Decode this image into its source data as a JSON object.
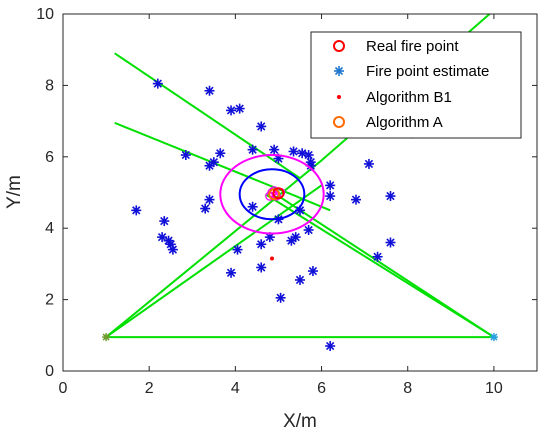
{
  "chart_data": {
    "type": "scatter",
    "xlabel": "X/m",
    "ylabel": "Y/m",
    "xlim": [
      0,
      11
    ],
    "ylim": [
      0,
      10
    ],
    "xticks": [
      "0",
      "2",
      "4",
      "6",
      "8",
      "10"
    ],
    "yticks": [
      "0",
      "2",
      "4",
      "6",
      "8",
      "10"
    ],
    "grid": false,
    "legend_position": "top-right",
    "legend": [
      "Real fire point",
      "Fire point estimate",
      "Algorithm B1",
      "Algorithm A"
    ],
    "series": [
      {
        "name": "Fire point estimate",
        "marker": "asterisk",
        "color": "#1010d8",
        "points": [
          [
            2.2,
            8.05
          ],
          [
            3.4,
            7.85
          ],
          [
            3.9,
            7.3
          ],
          [
            4.1,
            7.35
          ],
          [
            4.6,
            6.85
          ],
          [
            2.85,
            6.05
          ],
          [
            3.65,
            6.1
          ],
          [
            3.4,
            5.75
          ],
          [
            3.5,
            5.85
          ],
          [
            4.4,
            6.2
          ],
          [
            4.9,
            6.2
          ],
          [
            5.0,
            5.95
          ],
          [
            5.35,
            6.15
          ],
          [
            5.55,
            6.1
          ],
          [
            5.7,
            6.05
          ],
          [
            5.75,
            5.85
          ],
          [
            5.75,
            5.75
          ],
          [
            7.1,
            5.8
          ],
          [
            8.1,
            6.65
          ],
          [
            6.2,
            5.2
          ],
          [
            6.2,
            4.9
          ],
          [
            6.8,
            4.8
          ],
          [
            7.6,
            4.9
          ],
          [
            1.7,
            4.5
          ],
          [
            2.35,
            4.2
          ],
          [
            3.3,
            4.55
          ],
          [
            3.4,
            4.8
          ],
          [
            4.4,
            4.6
          ],
          [
            5.0,
            4.25
          ],
          [
            5.5,
            4.5
          ],
          [
            2.3,
            3.75
          ],
          [
            2.45,
            3.65
          ],
          [
            2.5,
            3.55
          ],
          [
            2.55,
            3.4
          ],
          [
            4.05,
            3.4
          ],
          [
            4.6,
            3.55
          ],
          [
            4.8,
            3.75
          ],
          [
            5.3,
            3.65
          ],
          [
            5.4,
            3.75
          ],
          [
            5.7,
            3.95
          ],
          [
            7.6,
            3.6
          ],
          [
            7.3,
            3.2
          ],
          [
            3.9,
            2.75
          ],
          [
            4.6,
            2.9
          ],
          [
            5.5,
            2.55
          ],
          [
            5.8,
            2.8
          ],
          [
            5.05,
            2.05
          ],
          [
            6.2,
            0.7
          ]
        ]
      },
      {
        "name": "Real fire point",
        "marker": "circle",
        "color": "#ff0000",
        "points": [
          [
            5.0,
            4.98
          ]
        ]
      },
      {
        "name": "Algorithm B1",
        "marker": "dot",
        "color": "#ff0000",
        "points": [
          [
            4.85,
            3.15
          ]
        ]
      },
      {
        "name": "Algorithm A",
        "marker": "circle",
        "color": "#ff6a00",
        "points": [
          [
            4.9,
            4.95
          ]
        ]
      },
      {
        "name": "",
        "marker": "circle-small",
        "color": "#ff00ff",
        "points": [
          [
            4.85,
            5.0
          ],
          [
            4.8,
            4.9
          ],
          [
            4.95,
            4.9
          ],
          [
            5.05,
            5.0
          ],
          [
            4.9,
            5.05
          ]
        ]
      }
    ],
    "lines": [
      {
        "color": "#00e000",
        "points": [
          [
            1.2,
            8.9
          ],
          [
            5.5,
            5.4
          ]
        ]
      },
      {
        "color": "#00e000",
        "points": [
          [
            1.2,
            6.95
          ],
          [
            5.4,
            4.9
          ],
          [
            6.2,
            4.5
          ]
        ]
      },
      {
        "color": "#00e000",
        "points": [
          [
            1.0,
            0.95
          ],
          [
            10.0,
            0.95
          ],
          [
            5.0,
            4.9
          ]
        ]
      },
      {
        "color": "#00e000",
        "points": [
          [
            1.0,
            0.95
          ],
          [
            6.0,
            5.9
          ],
          [
            9.9,
            10.0
          ]
        ]
      },
      {
        "color": "#00e000",
        "points": [
          [
            1.0,
            0.95
          ],
          [
            6.0,
            5.2
          ]
        ]
      },
      {
        "color": "#00e000",
        "points": [
          [
            10.0,
            0.95
          ],
          [
            4.7,
            4.95
          ]
        ]
      }
    ],
    "ellipses": [
      {
        "color": "#0000ff",
        "center": [
          4.85,
          4.95
        ],
        "rx": 0.75,
        "ry": 0.7
      },
      {
        "color": "#ff00ff",
        "center": [
          4.85,
          4.95
        ],
        "rx": 1.2,
        "ry": 1.1
      }
    ],
    "anchors": [
      {
        "color": "#6c9a2e",
        "point": [
          1.0,
          0.95
        ]
      },
      {
        "color": "#2aa0e0",
        "point": [
          10.0,
          0.95
        ]
      }
    ]
  }
}
